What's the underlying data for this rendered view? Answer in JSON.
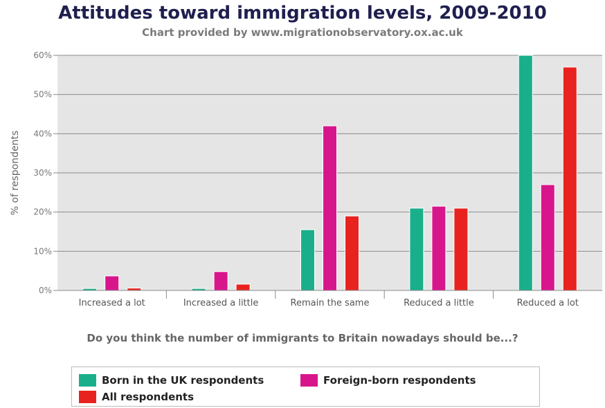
{
  "chart_data": {
    "type": "bar",
    "title": "Attitudes toward immigration levels, 2009-2010",
    "subtitle": "Chart provided by www.migrationobservatory.ox.ac.uk",
    "xlabel": "Do you think the number of immigrants to Britain nowadays should be...?",
    "ylabel": "% of respondents",
    "ylim": [
      0,
      60
    ],
    "yticks": [
      0,
      10,
      20,
      30,
      40,
      50,
      60
    ],
    "ytick_labels": [
      "0%",
      "10%",
      "20%",
      "30%",
      "40%",
      "50%",
      "60%"
    ],
    "grid": true,
    "legend_position": "bottom",
    "categories": [
      "Increased a lot",
      "Increased a little",
      "Remain the same",
      "Reduced a little",
      "Reduced a lot"
    ],
    "series": [
      {
        "name": "Born in the UK respondents",
        "color": "#1aaf8b",
        "values": [
          0.5,
          0.5,
          15.5,
          21,
          60
        ]
      },
      {
        "name": "Foreign-born respondents",
        "color": "#d8168c",
        "values": [
          3.7,
          4.8,
          42,
          21.5,
          27
        ]
      },
      {
        "name": "All respondents",
        "color": "#e8231f",
        "values": [
          0.6,
          1.6,
          19,
          21,
          57
        ]
      }
    ]
  }
}
